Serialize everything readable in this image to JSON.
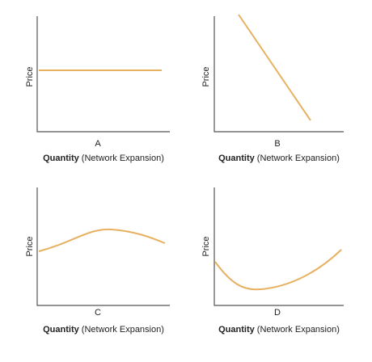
{
  "panels": [
    {
      "letter": "A",
      "y_label": "Price",
      "x_label_bold": "Quantity",
      "x_label_rest": "(Network Expansion)"
    },
    {
      "letter": "B",
      "y_label": "Price",
      "x_label_bold": "Quantity",
      "x_label_rest": "(Network Expansion)"
    },
    {
      "letter": "C",
      "y_label": "Price",
      "x_label_bold": "Quantity",
      "x_label_rest": "(Network Expansion)"
    },
    {
      "letter": "D",
      "y_label": "Price",
      "x_label_bold": "Quantity",
      "x_label_rest": "(Network Expansion)"
    }
  ]
}
